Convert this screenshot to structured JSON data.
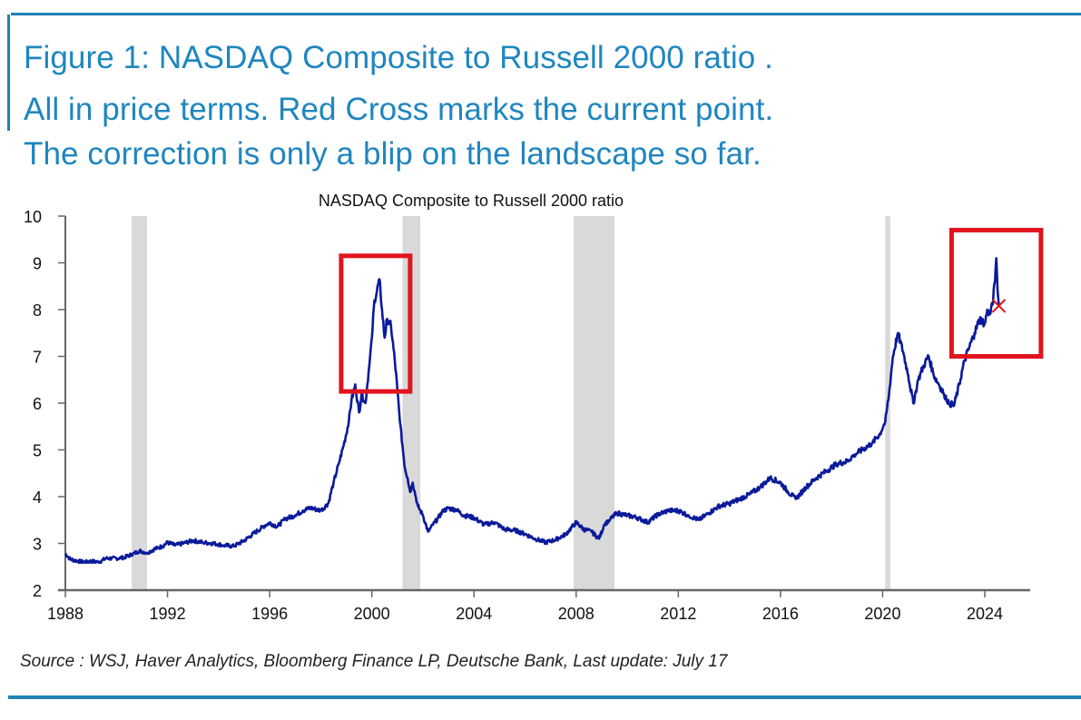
{
  "header": {
    "line1": "Figure 1: NASDAQ Composite to Russell 2000 ratio .",
    "line2": "All in price terms. Red Cross marks the current point.",
    "line3": "The correction is only a blip on the landscape so far."
  },
  "source": "Source : WSJ, Haver Analytics, Bloomberg Finance LP, Deutsche Bank, Last update: July 17",
  "colors": {
    "headline": "#1f86bf",
    "rule": "#1f82b4",
    "series": "#0a1a9a",
    "highlight": "#e0141e",
    "recession": "#d9d9d9",
    "axis": "#666666"
  },
  "chart_data": {
    "type": "line",
    "title": "NASDAQ Composite to Russell 2000 ratio",
    "xlabel": "",
    "ylabel": "",
    "xlim": [
      1988,
      2025.8
    ],
    "ylim": [
      2,
      10
    ],
    "x_ticks": [
      1988,
      1992,
      1996,
      2000,
      2004,
      2008,
      2012,
      2016,
      2020,
      2024
    ],
    "y_ticks": [
      2,
      3,
      4,
      5,
      6,
      7,
      8,
      9,
      10
    ],
    "grid": false,
    "legend": "none",
    "recession_bands": [
      {
        "start": 1990.6,
        "end": 1991.2
      },
      {
        "start": 2001.2,
        "end": 2001.9
      },
      {
        "start": 2007.9,
        "end": 2009.5
      },
      {
        "start": 2020.1,
        "end": 2020.3
      }
    ],
    "highlight_boxes": [
      {
        "x_start": 1998.8,
        "x_end": 2001.5,
        "y_start": 6.25,
        "y_end": 9.15
      },
      {
        "x_start": 2022.7,
        "x_end": 2026.2,
        "y_start": 7.0,
        "y_end": 9.7
      }
    ],
    "current_point": {
      "x": 2024.55,
      "y": 8.08,
      "marker": "red-cross"
    },
    "series": [
      {
        "name": "NASDAQ Composite / Russell 2000",
        "x": [
          1988.0,
          1988.2,
          1988.5,
          1988.8,
          1989.0,
          1989.3,
          1989.6,
          1990.0,
          1990.3,
          1990.6,
          1990.9,
          1991.2,
          1991.5,
          1991.8,
          1992.0,
          1992.3,
          1992.6,
          1993.0,
          1993.4,
          1993.8,
          1994.2,
          1994.6,
          1995.0,
          1995.4,
          1995.8,
          1996.0,
          1996.3,
          1996.6,
          1997.0,
          1997.3,
          1997.6,
          1998.0,
          1998.3,
          1998.5,
          1998.7,
          1998.9,
          1999.1,
          1999.2,
          1999.35,
          1999.5,
          1999.6,
          1999.75,
          1999.9,
          2000.0,
          2000.1,
          2000.2,
          2000.3,
          2000.4,
          2000.5,
          2000.6,
          2000.75,
          2000.9,
          2001.0,
          2001.1,
          2001.2,
          2001.3,
          2001.4,
          2001.5,
          2001.6,
          2001.8,
          2002.0,
          2002.2,
          2002.4,
          2002.6,
          2002.8,
          2003.0,
          2003.3,
          2003.6,
          2004.0,
          2004.4,
          2004.8,
          2005.2,
          2005.6,
          2006.0,
          2006.4,
          2006.8,
          2007.2,
          2007.6,
          2008.0,
          2008.3,
          2008.6,
          2008.9,
          2009.1,
          2009.3,
          2009.6,
          2010.0,
          2010.4,
          2010.8,
          2011.2,
          2011.6,
          2012.0,
          2012.4,
          2012.8,
          2013.2,
          2013.6,
          2014.0,
          2014.4,
          2014.8,
          2015.2,
          2015.6,
          2016.0,
          2016.3,
          2016.6,
          2017.0,
          2017.4,
          2017.8,
          2018.2,
          2018.6,
          2018.9,
          2019.2,
          2019.6,
          2019.9,
          2020.1,
          2020.25,
          2020.4,
          2020.6,
          2020.8,
          2021.0,
          2021.2,
          2021.4,
          2021.6,
          2021.8,
          2022.0,
          2022.2,
          2022.4,
          2022.6,
          2022.8,
          2023.0,
          2023.2,
          2023.4,
          2023.6,
          2023.8,
          2024.0,
          2024.1,
          2024.2,
          2024.3,
          2024.4,
          2024.45,
          2024.5,
          2024.55
        ],
        "values": [
          2.78,
          2.66,
          2.62,
          2.6,
          2.62,
          2.6,
          2.68,
          2.68,
          2.7,
          2.76,
          2.84,
          2.8,
          2.88,
          2.94,
          3.02,
          2.96,
          3.0,
          3.06,
          3.02,
          3.0,
          2.96,
          2.94,
          3.06,
          3.22,
          3.38,
          3.44,
          3.36,
          3.52,
          3.6,
          3.7,
          3.76,
          3.7,
          3.86,
          4.3,
          4.7,
          5.1,
          5.6,
          6.05,
          6.4,
          5.8,
          6.2,
          6.0,
          6.8,
          7.4,
          8.2,
          8.4,
          8.65,
          8.0,
          7.4,
          7.8,
          7.65,
          6.9,
          6.3,
          5.6,
          5.1,
          4.6,
          4.4,
          4.1,
          4.3,
          3.8,
          3.6,
          3.25,
          3.4,
          3.55,
          3.7,
          3.75,
          3.72,
          3.6,
          3.55,
          3.4,
          3.45,
          3.3,
          3.28,
          3.2,
          3.1,
          3.02,
          3.08,
          3.2,
          3.45,
          3.3,
          3.25,
          3.1,
          3.4,
          3.5,
          3.65,
          3.6,
          3.55,
          3.45,
          3.62,
          3.7,
          3.7,
          3.6,
          3.5,
          3.65,
          3.8,
          3.85,
          3.95,
          4.05,
          4.2,
          4.4,
          4.3,
          4.1,
          3.95,
          4.2,
          4.4,
          4.55,
          4.7,
          4.75,
          4.9,
          5.0,
          5.15,
          5.35,
          5.6,
          6.2,
          7.0,
          7.5,
          7.1,
          6.6,
          6.0,
          6.5,
          6.8,
          7.0,
          6.6,
          6.4,
          6.2,
          6.0,
          5.95,
          6.4,
          6.9,
          7.2,
          7.5,
          7.8,
          7.7,
          8.0,
          7.9,
          8.1,
          8.6,
          9.1,
          8.4,
          8.08
        ]
      }
    ]
  }
}
